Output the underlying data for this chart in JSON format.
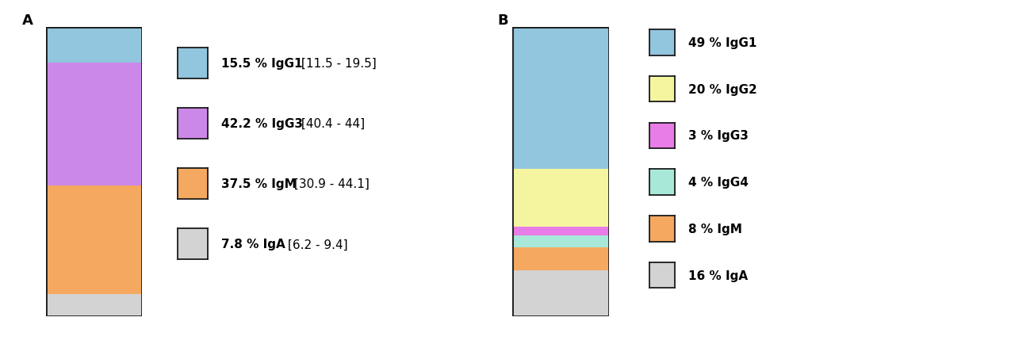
{
  "panel_A": {
    "label": "A",
    "segments": [
      {
        "name": "IgG1",
        "value": 15.5,
        "color": "#92C5DE",
        "bold_text": "15.5 % IgG1",
        "range_text": " [11.5 - 19.5]"
      },
      {
        "name": "IgG3",
        "value": 42.2,
        "color": "#CC88E8",
        "bold_text": "42.2 % IgG3",
        "range_text": " [40.4 - 44]"
      },
      {
        "name": "IgM",
        "value": 37.5,
        "color": "#F4A860",
        "bold_text": "37.5 % IgM",
        "range_text": " [30.9 - 44.1]"
      },
      {
        "name": "IgA",
        "value": 7.8,
        "color": "#D3D3D3",
        "bold_text": "7.8 % IgA",
        "range_text": " [6.2 - 9.4]"
      }
    ]
  },
  "panel_B": {
    "label": "B",
    "segments": [
      {
        "name": "IgG1",
        "value": 49,
        "color": "#92C5DE",
        "bold_text": "49 % IgG1",
        "range_text": ""
      },
      {
        "name": "IgG2",
        "value": 20,
        "color": "#F5F5A0",
        "bold_text": "20 % IgG2",
        "range_text": ""
      },
      {
        "name": "IgG3",
        "value": 3,
        "color": "#E87DE8",
        "bold_text": "3 % IgG3",
        "range_text": ""
      },
      {
        "name": "IgG4",
        "value": 4,
        "color": "#A8E8D8",
        "bold_text": "4 % IgG4",
        "range_text": ""
      },
      {
        "name": "IgM",
        "value": 8,
        "color": "#F4A860",
        "bold_text": "8 % IgM",
        "range_text": ""
      },
      {
        "name": "IgA",
        "value": 16,
        "color": "#D3D3D3",
        "bold_text": "16 % IgA",
        "range_text": ""
      }
    ]
  },
  "background_color": "#ffffff",
  "bar_edgecolor": "#1a1a1a",
  "bar_linewidth": 2.0
}
